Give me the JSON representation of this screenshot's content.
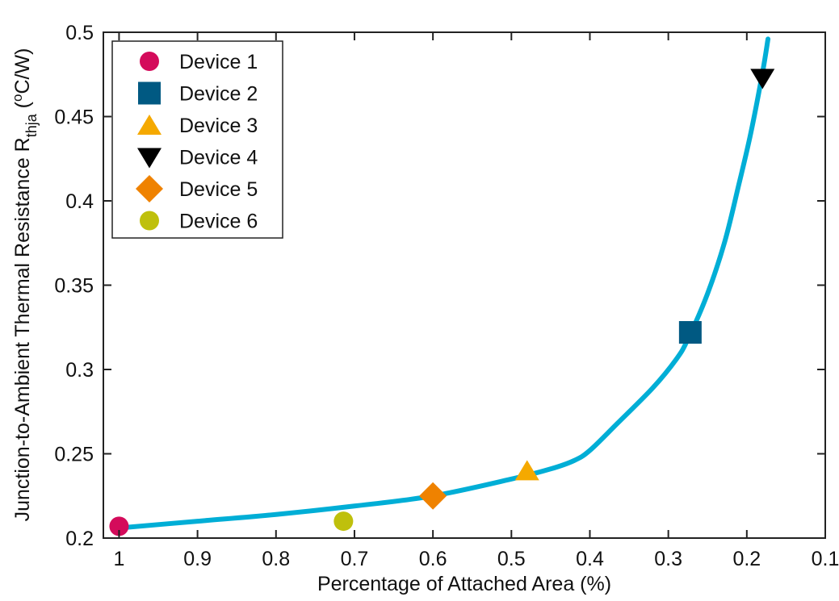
{
  "chart_data": {
    "type": "scatter",
    "title": "",
    "xlabel": "Percentage of Attached Area (%)",
    "ylabel": {
      "main": "Junction-to-Ambient Thermal Resistance R",
      "subscript": "thja",
      "unit_open": " (",
      "unit_sup": "o",
      "unit_close": "C/W)"
    },
    "xlim": [
      0.1,
      1.02
    ],
    "x_reversed": true,
    "ylim": [
      0.2,
      0.5
    ],
    "xticks": [
      1,
      0.9,
      0.8,
      0.7,
      0.6,
      0.5,
      0.4,
      0.3,
      0.2,
      0.1
    ],
    "xtick_labels": [
      "1",
      "0.9",
      "0.8",
      "0.7",
      "0.6",
      "0.5",
      "0.4",
      "0.3",
      "0.2",
      "0.1"
    ],
    "yticks": [
      0.2,
      0.25,
      0.3,
      0.35,
      0.4,
      0.45,
      0.5
    ],
    "ytick_labels": [
      "0.2",
      "0.25",
      "0.3",
      "0.35",
      "0.4",
      "0.45",
      "0.5"
    ],
    "grid": false,
    "legend_placement": "top-left",
    "fit_curve": {
      "color": "#00aed6",
      "x": [
        1,
        0.9,
        0.8,
        0.7,
        0.6,
        0.5,
        0.45,
        0.42,
        0.4,
        0.365,
        0.32,
        0.29,
        0.275,
        0.25,
        0.228,
        0.21,
        0.195,
        0.18,
        0.173
      ],
      "y": [
        0.206,
        0.21,
        0.214,
        0.219,
        0.225,
        0.235,
        0.241,
        0.246,
        0.252,
        0.268,
        0.289,
        0.306,
        0.318,
        0.345,
        0.376,
        0.41,
        0.44,
        0.476,
        0.496
      ]
    },
    "series": [
      {
        "name": "Device 1",
        "marker": "circle",
        "color": "#d40b5b",
        "x": 1.0,
        "y": 0.207
      },
      {
        "name": "Device 2",
        "marker": "square",
        "color": "#005982",
        "x": 0.272,
        "y": 0.322
      },
      {
        "name": "Device 3",
        "marker": "triangle-up",
        "color": "#f5a900",
        "x": 0.48,
        "y": 0.24
      },
      {
        "name": "Device 4",
        "marker": "triangle-down",
        "color": "#000000",
        "x": 0.18,
        "y": 0.473
      },
      {
        "name": "Device 5",
        "marker": "diamond",
        "color": "#ef8200",
        "x": 0.6,
        "y": 0.225
      },
      {
        "name": "Device 6",
        "marker": "circle",
        "color": "#bfc00c",
        "x": 0.714,
        "y": 0.21
      }
    ]
  }
}
